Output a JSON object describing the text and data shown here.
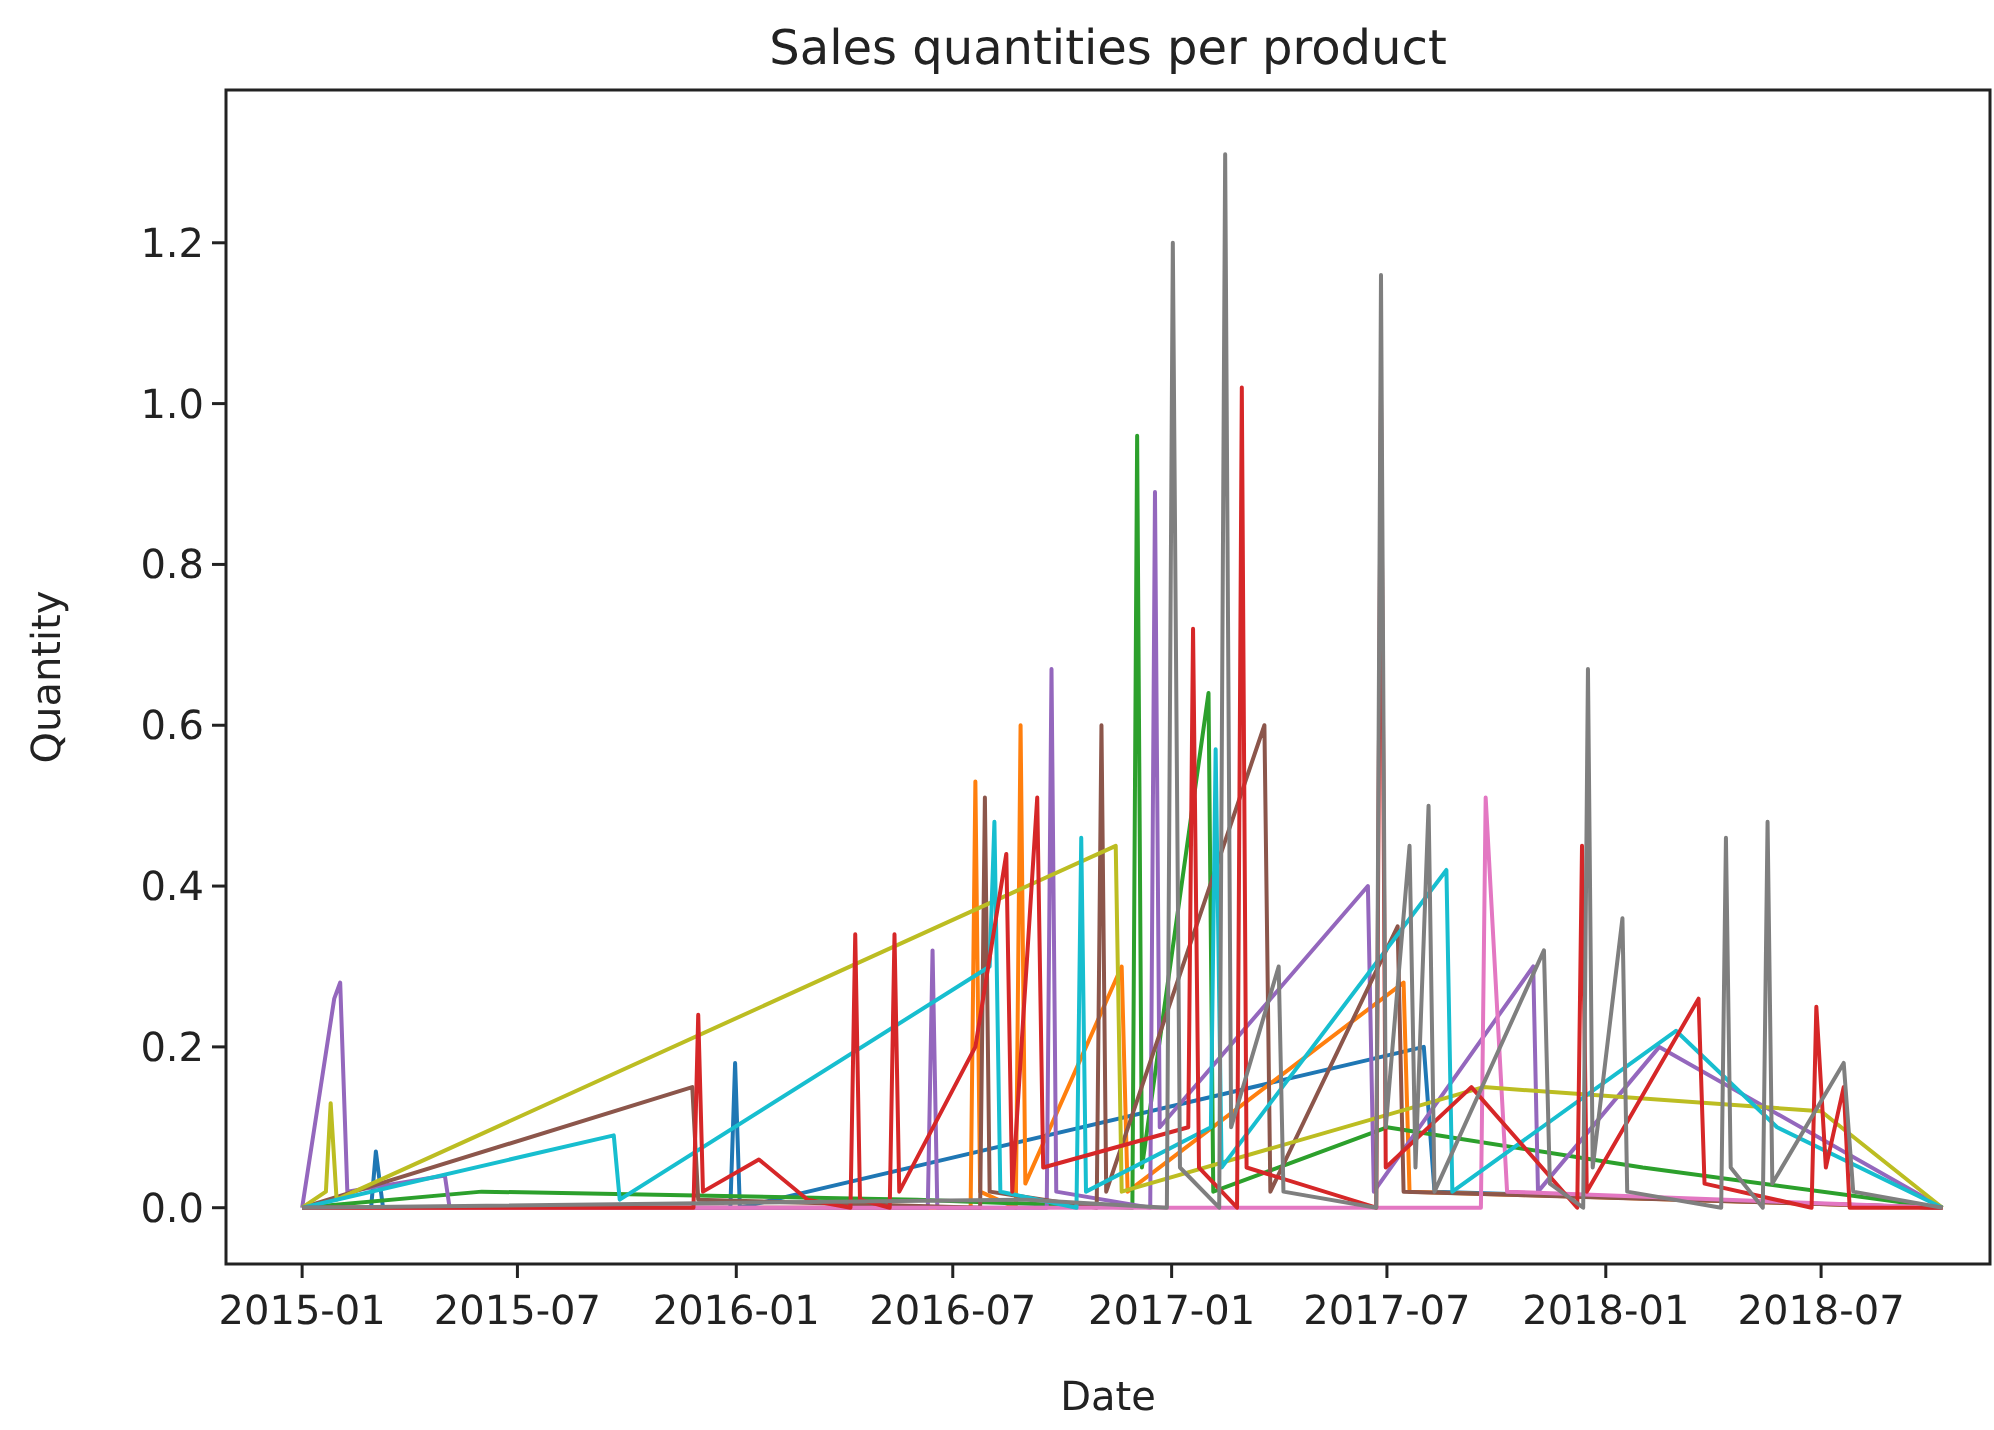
{
  "chart_data": {
    "type": "line",
    "title": "Sales quantities per product",
    "xlabel": "Date",
    "ylabel": "Quantity",
    "xlim": [
      "2014-10-29",
      "2018-11-20"
    ],
    "ylim": [
      -0.07,
      1.39
    ],
    "xticks": [
      {
        "value": "2015-01",
        "label": "2015-01"
      },
      {
        "value": "2015-07",
        "label": "2015-07"
      },
      {
        "value": "2016-01",
        "label": "2016-01"
      },
      {
        "value": "2016-07",
        "label": "2016-07"
      },
      {
        "value": "2017-01",
        "label": "2017-01"
      },
      {
        "value": "2017-07",
        "label": "2017-07"
      },
      {
        "value": "2018-01",
        "label": "2018-01"
      },
      {
        "value": "2018-07",
        "label": "2018-07"
      }
    ],
    "yticks": [
      {
        "value": 0,
        "label": "0.0"
      },
      {
        "value": 0.2,
        "label": "0.2"
      },
      {
        "value": 0.4,
        "label": "0.4"
      },
      {
        "value": 0.6,
        "label": "0.6"
      },
      {
        "value": 0.8,
        "label": "0.8"
      },
      {
        "value": 1.0,
        "label": "1.0"
      },
      {
        "value": 1.2,
        "label": "1.2"
      }
    ],
    "series": [
      {
        "color": "#1f77b4",
        "x": [
          "2015-01-01",
          "2015-02-28",
          "2015-03-04",
          "2015-03-10",
          "2015-12-27",
          "2015-12-31",
          "2016-01-04",
          "2017-08-01",
          "2017-08-10",
          "2018-10-11"
        ],
        "values": [
          0,
          0,
          0.07,
          0,
          0,
          0.18,
          0,
          0.2,
          0.02,
          0
        ]
      },
      {
        "color": "#ff7f0e",
        "x": [
          "2015-01-01",
          "2016-07-16",
          "2016-07-20",
          "2016-07-24",
          "2016-08-23",
          "2016-08-27",
          "2016-08-31",
          "2016-11-20",
          "2016-11-25",
          "2017-07-15",
          "2017-07-20",
          "2018-10-11"
        ],
        "values": [
          0,
          0,
          0.53,
          0.02,
          0,
          0.6,
          0.03,
          0.3,
          0.02,
          0.28,
          0.02,
          0
        ]
      },
      {
        "color": "#2ca02c",
        "x": [
          "2015-01-01",
          "2015-06-01",
          "2016-06-01",
          "2016-11-29",
          "2016-12-03",
          "2016-12-07",
          "2017-02-01",
          "2017-02-05",
          "2017-07-01",
          "2018-02-01",
          "2018-10-11"
        ],
        "values": [
          0,
          0.02,
          0.01,
          0,
          0.96,
          0.05,
          0.64,
          0.02,
          0.1,
          0.05,
          0
        ]
      },
      {
        "color": "#9467bd",
        "x": [
          "2015-01-01",
          "2015-01-28",
          "2015-02-02",
          "2015-02-08",
          "2015-05-01",
          "2015-05-05",
          "2016-06-10",
          "2016-06-14",
          "2016-06-18",
          "2016-09-18",
          "2016-09-22",
          "2016-09-26",
          "2016-12-14",
          "2016-12-18",
          "2016-12-22",
          "2017-06-15",
          "2017-06-20",
          "2017-11-01",
          "2017-11-05",
          "2018-02-15",
          "2018-10-11"
        ],
        "values": [
          0,
          0.26,
          0.28,
          0.02,
          0.04,
          0,
          0,
          0.32,
          0,
          0,
          0.67,
          0.02,
          0,
          0.89,
          0.1,
          0.4,
          0.02,
          0.3,
          0.02,
          0.2,
          0
        ]
      },
      {
        "color": "#8c564b",
        "x": [
          "2015-01-01",
          "2015-11-25",
          "2015-11-30",
          "2016-07-24",
          "2016-07-28",
          "2016-08-01",
          "2016-10-30",
          "2016-11-03",
          "2016-11-07",
          "2017-03-20",
          "2017-03-25",
          "2017-07-10",
          "2017-07-15",
          "2018-10-11"
        ],
        "values": [
          0,
          0.15,
          0.01,
          0,
          0.51,
          0.02,
          0,
          0.6,
          0.02,
          0.6,
          0.02,
          0.35,
          0.02,
          0
        ]
      },
      {
        "color": "#e377c2",
        "x": [
          "2015-01-01",
          "2017-09-18",
          "2017-09-22",
          "2017-10-10",
          "2018-10-11"
        ],
        "values": [
          0,
          0,
          0.51,
          0.02,
          0
        ]
      },
      {
        "color": "#bcbd22",
        "x": [
          "2015-01-01",
          "2015-01-21",
          "2015-01-25",
          "2015-01-30",
          "2016-11-15",
          "2016-11-20",
          "2017-09-20",
          "2018-07-01",
          "2018-10-11"
        ],
        "values": [
          0,
          0.02,
          0.13,
          0.01,
          0.45,
          0.02,
          0.15,
          0.12,
          0
        ]
      },
      {
        "color": "#17becf",
        "x": [
          "2015-01-01",
          "2015-09-20",
          "2015-09-25",
          "2016-08-01",
          "2016-08-05",
          "2016-08-10",
          "2016-10-13",
          "2016-10-17",
          "2016-10-21",
          "2017-02-03",
          "2017-02-07",
          "2017-02-12",
          "2017-08-20",
          "2017-08-25",
          "2018-03-01",
          "2018-05-25",
          "2018-10-11"
        ],
        "values": [
          0,
          0.09,
          0.01,
          0.3,
          0.48,
          0.02,
          0,
          0.46,
          0.02,
          0.1,
          0.57,
          0.05,
          0.42,
          0.02,
          0.22,
          0.1,
          0
        ]
      },
      {
        "color": "#d62728",
        "x": [
          "2015-01-01",
          "2015-11-26",
          "2015-11-30",
          "2015-12-04",
          "2016-01-20",
          "2016-03-01",
          "2016-04-06",
          "2016-04-10",
          "2016-04-14",
          "2016-05-09",
          "2016-05-13",
          "2016-05-17",
          "2016-07-20",
          "2016-08-15",
          "2016-08-20",
          "2016-09-10",
          "2016-09-15",
          "2017-01-15",
          "2017-01-19",
          "2017-01-24",
          "2017-02-25",
          "2017-03-01",
          "2017-03-05",
          "2017-06-22",
          "2017-06-26",
          "2017-06-30",
          "2017-09-10",
          "2017-12-08",
          "2017-12-12",
          "2017-12-16",
          "2018-03-20",
          "2018-03-25",
          "2018-06-23",
          "2018-06-27",
          "2018-07-05",
          "2018-07-20",
          "2018-07-25",
          "2018-10-11"
        ],
        "values": [
          0,
          0,
          0.24,
          0.02,
          0.06,
          0.01,
          0,
          0.34,
          0.01,
          0,
          0.34,
          0.02,
          0.2,
          0.44,
          0.02,
          0.51,
          0.05,
          0.1,
          0.72,
          0.05,
          0,
          1.02,
          0.05,
          0,
          1.01,
          0.05,
          0.15,
          0,
          0.45,
          0.02,
          0.26,
          0.03,
          0,
          0.25,
          0.05,
          0.15,
          0,
          0
        ]
      },
      {
        "color": "#7f7f7f",
        "x": [
          "2015-01-01",
          "2016-09-01",
          "2016-12-28",
          "2017-01-02",
          "2017-01-08",
          "2017-02-10",
          "2017-02-15",
          "2017-02-20",
          "2017-04-01",
          "2017-04-05",
          "2017-06-22",
          "2017-06-26",
          "2017-06-30",
          "2017-07-20",
          "2017-07-25",
          "2017-08-05",
          "2017-08-10",
          "2017-11-10",
          "2017-11-15",
          "2017-12-13",
          "2017-12-17",
          "2017-12-21",
          "2018-01-15",
          "2018-01-19",
          "2018-04-08",
          "2018-04-12",
          "2018-04-16",
          "2018-05-13",
          "2018-05-17",
          "2018-05-21",
          "2018-07-20",
          "2018-07-28",
          "2018-10-11"
        ],
        "values": [
          0,
          0.01,
          0,
          1.2,
          0.05,
          0,
          1.31,
          0.1,
          0.3,
          0.02,
          0,
          1.16,
          0.1,
          0.45,
          0.05,
          0.5,
          0.02,
          0.32,
          0.03,
          0,
          0.67,
          0.05,
          0.36,
          0.02,
          0,
          0.46,
          0.05,
          0,
          0.48,
          0.03,
          0.18,
          0.02,
          0
        ]
      }
    ]
  }
}
